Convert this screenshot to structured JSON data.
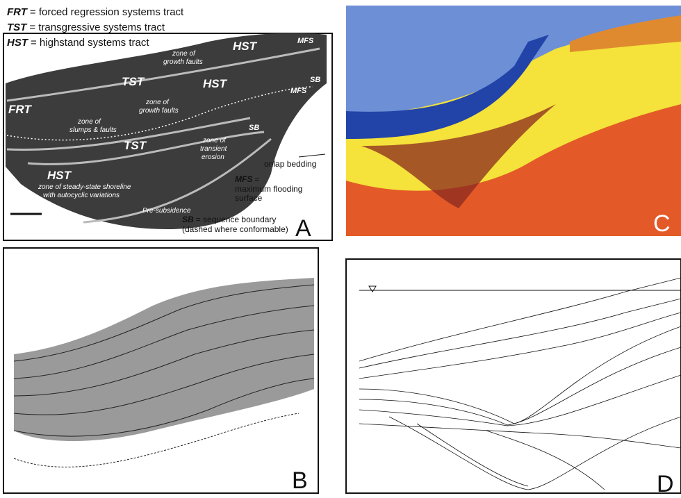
{
  "legend": [
    {
      "abbr": "FRT",
      "text": "= forced regression systems tract"
    },
    {
      "abbr": "TST",
      "text": "= transgressive systems tract"
    },
    {
      "abbr": "HST",
      "text": "= highstand systems tract"
    }
  ],
  "panels": [
    {
      "letter": "A",
      "scale": "10 cm",
      "labels": [
        "HST",
        "MFS",
        "SB",
        "TST",
        "HST",
        "MFS",
        "zone of",
        "growth faults",
        "FRT",
        "zone of",
        "growth faults",
        "zone of",
        "slumps & faults",
        "SB",
        "TST",
        "zone of",
        "transient",
        "erosion",
        "HST",
        "zone of steady-state shoreline",
        "with autocyclic variations",
        "Pre-subsidence"
      ],
      "keys": [
        {
          "text": "onlap bedding"
        },
        {
          "abbr": "MFS",
          "text": "=",
          "more": [
            "maximum flooding",
            "surface"
          ]
        },
        {
          "abbr": "SB",
          "text": "= sequence boundary",
          "more": [
            "(dashed where conformable)"
          ]
        }
      ]
    },
    {
      "letter": "B"
    },
    {
      "letter": "C"
    },
    {
      "letter": "D"
    }
  ]
}
